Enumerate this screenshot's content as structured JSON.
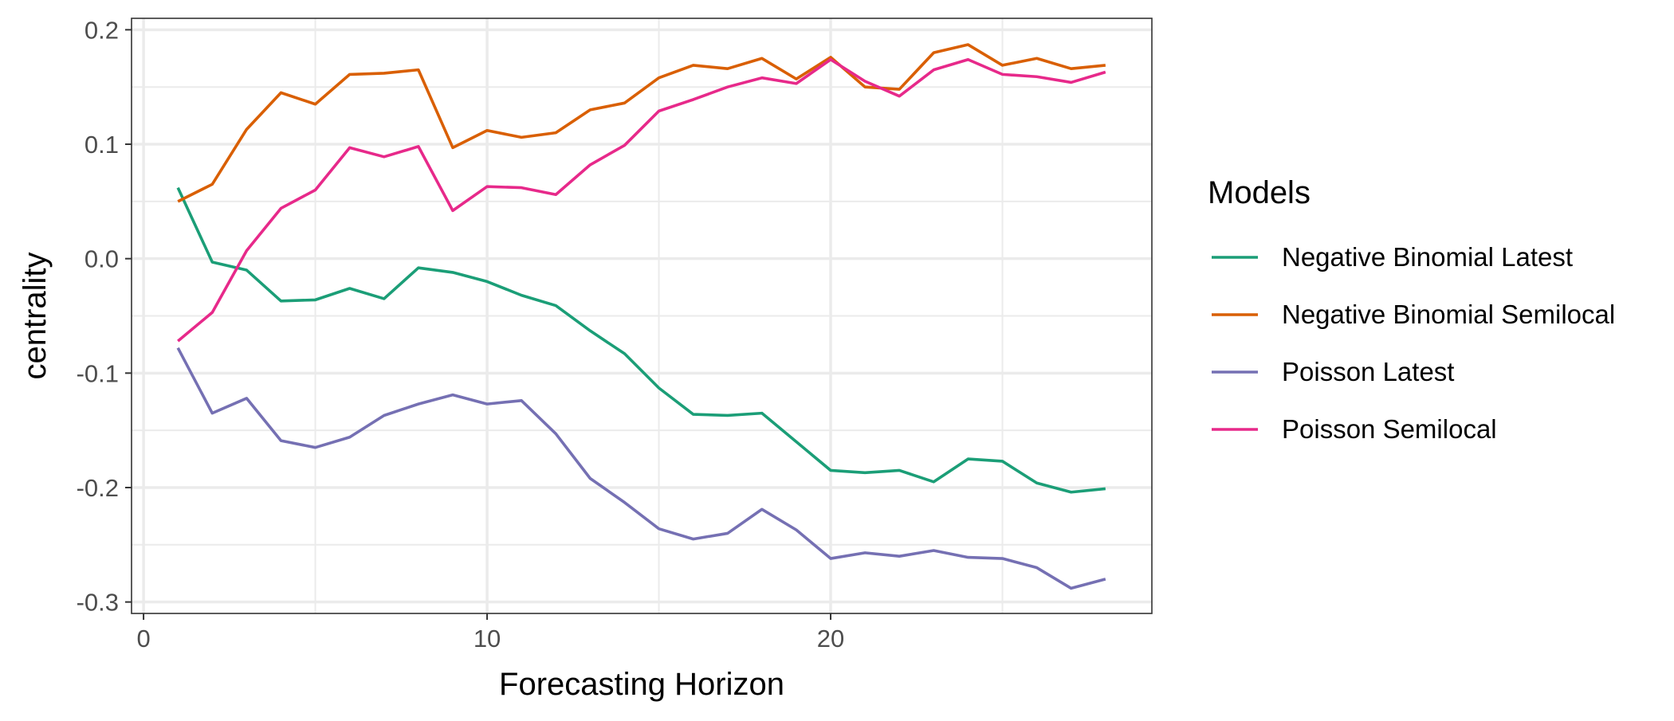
{
  "chart_data": {
    "type": "line",
    "title": "",
    "xlabel": "Forecasting Horizon",
    "ylabel": "centrality",
    "xlim": [
      -0.35,
      29.35
    ],
    "ylim": [
      -0.31,
      0.21
    ],
    "x_ticks": [
      0,
      10,
      20
    ],
    "y_ticks": [
      0.2,
      0.1,
      0.0,
      -0.1,
      -0.2,
      -0.3
    ],
    "x_tick_labels": [
      "0",
      "10",
      "20"
    ],
    "y_tick_labels": [
      "0.2",
      "0.1",
      "0.0",
      "-0.1",
      "-0.2",
      "-0.3"
    ],
    "x_minor_ticks": [
      5,
      15,
      25
    ],
    "y_minor_ticks": [
      0.15,
      0.05,
      -0.05,
      -0.15,
      -0.25
    ],
    "grid": true,
    "legend_title": "Models",
    "legend_position": "right",
    "x": [
      1,
      2,
      3,
      4,
      5,
      6,
      7,
      8,
      9,
      10,
      11,
      12,
      13,
      14,
      15,
      16,
      17,
      18,
      19,
      20,
      21,
      22,
      23,
      24,
      25,
      26,
      27,
      28
    ],
    "series": [
      {
        "name": "Negative Binomial Latest",
        "color": "#1b9e77",
        "values": [
          0.062,
          -0.003,
          -0.01,
          -0.037,
          -0.036,
          -0.026,
          -0.035,
          -0.008,
          -0.012,
          -0.02,
          -0.032,
          -0.041,
          -0.063,
          -0.083,
          -0.113,
          -0.136,
          -0.137,
          -0.135,
          -0.16,
          -0.185,
          -0.187,
          -0.185,
          -0.195,
          -0.175,
          -0.177,
          -0.196,
          -0.204,
          -0.201
        ]
      },
      {
        "name": "Negative Binomial Semilocal",
        "color": "#d95f02",
        "values": [
          0.05,
          0.065,
          0.113,
          0.145,
          0.135,
          0.161,
          0.162,
          0.165,
          0.097,
          0.112,
          0.106,
          0.11,
          0.13,
          0.136,
          0.158,
          0.169,
          0.166,
          0.175,
          0.157,
          0.176,
          0.15,
          0.148,
          0.18,
          0.187,
          0.169,
          0.175,
          0.166,
          0.169
        ]
      },
      {
        "name": "Poisson Latest",
        "color": "#7570b3",
        "values": [
          -0.078,
          -0.135,
          -0.122,
          -0.159,
          -0.165,
          -0.156,
          -0.137,
          -0.127,
          -0.119,
          -0.127,
          -0.124,
          -0.153,
          -0.192,
          -0.213,
          -0.236,
          -0.245,
          -0.24,
          -0.219,
          -0.237,
          -0.262,
          -0.257,
          -0.26,
          -0.255,
          -0.261,
          -0.262,
          -0.27,
          -0.288,
          -0.28
        ]
      },
      {
        "name": "Poisson Semilocal",
        "color": "#e7298a",
        "values": [
          -0.072,
          -0.047,
          0.007,
          0.044,
          0.06,
          0.097,
          0.089,
          0.098,
          0.042,
          0.063,
          0.062,
          0.056,
          0.082,
          0.099,
          0.129,
          0.139,
          0.15,
          0.158,
          0.153,
          0.174,
          0.155,
          0.142,
          0.165,
          0.174,
          0.161,
          0.159,
          0.154,
          0.163
        ]
      }
    ]
  }
}
